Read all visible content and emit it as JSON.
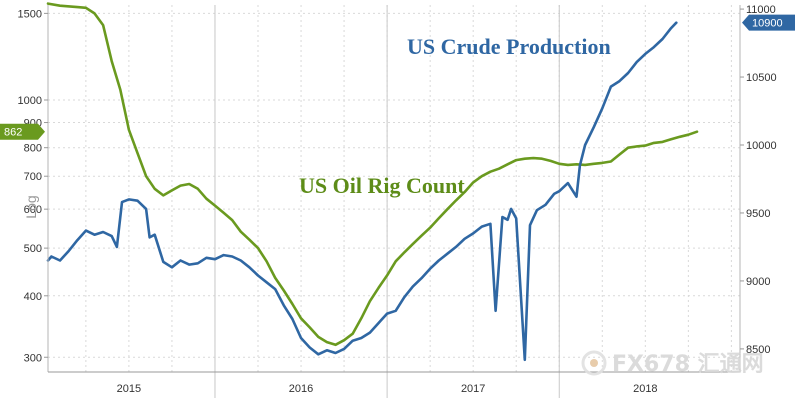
{
  "chart_data": {
    "type": "line",
    "title": "",
    "left_axis": {
      "label": "Log",
      "scale": "log",
      "range": [
        280,
        1560
      ],
      "ticks": [
        300,
        400,
        500,
        600,
        700,
        800,
        900,
        1000,
        1500
      ],
      "tick_labels": [
        "300",
        "400",
        "500",
        "600",
        "700",
        "800",
        "900",
        "1000",
        "1500"
      ]
    },
    "right_axis": {
      "label": "",
      "scale": "linear",
      "range": [
        8330,
        11030
      ],
      "ticks": [
        8500,
        9000,
        9500,
        10000,
        10500,
        11000
      ],
      "tick_labels": [
        "8500",
        "9000",
        "9500",
        "10000",
        "10500",
        "11000"
      ]
    },
    "x_axis": {
      "range": [
        2014.53,
        2018.55
      ],
      "tick_labels": [
        {
          "label": "2015",
          "x": 2015.0
        },
        {
          "label": "2016",
          "x": 2016.0
        },
        {
          "label": "2017",
          "x": 2017.0
        },
        {
          "label": "2018",
          "x": 2018.0
        }
      ],
      "year_dividers": [
        2015.5,
        2016.5,
        2017.5
      ]
    },
    "grid": true,
    "series": [
      {
        "name": "US Oil Rig Count",
        "axis": "left",
        "color": "#6a9a1f",
        "last_value_label": "862",
        "points": [
          [
            2014.53,
            1570
          ],
          [
            2014.6,
            1555
          ],
          [
            2014.7,
            1545
          ],
          [
            2014.75,
            1540
          ],
          [
            2014.8,
            1500
          ],
          [
            2014.85,
            1420
          ],
          [
            2014.9,
            1200
          ],
          [
            2014.95,
            1050
          ],
          [
            2015.0,
            870
          ],
          [
            2015.05,
            780
          ],
          [
            2015.1,
            700
          ],
          [
            2015.15,
            660
          ],
          [
            2015.2,
            640
          ],
          [
            2015.25,
            655
          ],
          [
            2015.3,
            670
          ],
          [
            2015.35,
            675
          ],
          [
            2015.4,
            660
          ],
          [
            2015.45,
            630
          ],
          [
            2015.5,
            610
          ],
          [
            2015.55,
            590
          ],
          [
            2015.6,
            570
          ],
          [
            2015.65,
            540
          ],
          [
            2015.7,
            520
          ],
          [
            2015.75,
            500
          ],
          [
            2015.8,
            470
          ],
          [
            2015.85,
            435
          ],
          [
            2015.9,
            410
          ],
          [
            2015.95,
            385
          ],
          [
            2016.0,
            360
          ],
          [
            2016.05,
            345
          ],
          [
            2016.1,
            330
          ],
          [
            2016.15,
            322
          ],
          [
            2016.2,
            318
          ],
          [
            2016.25,
            325
          ],
          [
            2016.3,
            335
          ],
          [
            2016.35,
            360
          ],
          [
            2016.4,
            390
          ],
          [
            2016.45,
            415
          ],
          [
            2016.5,
            440
          ],
          [
            2016.55,
            470
          ],
          [
            2016.6,
            490
          ],
          [
            2016.65,
            510
          ],
          [
            2016.7,
            530
          ],
          [
            2016.75,
            550
          ],
          [
            2016.8,
            575
          ],
          [
            2016.85,
            600
          ],
          [
            2016.9,
            625
          ],
          [
            2016.95,
            650
          ],
          [
            2017.0,
            680
          ],
          [
            2017.05,
            700
          ],
          [
            2017.1,
            715
          ],
          [
            2017.15,
            725
          ],
          [
            2017.2,
            740
          ],
          [
            2017.25,
            755
          ],
          [
            2017.3,
            760
          ],
          [
            2017.35,
            762
          ],
          [
            2017.4,
            760
          ],
          [
            2017.45,
            752
          ],
          [
            2017.5,
            742
          ],
          [
            2017.55,
            738
          ],
          [
            2017.6,
            740
          ],
          [
            2017.65,
            738
          ],
          [
            2017.7,
            742
          ],
          [
            2017.75,
            745
          ],
          [
            2017.8,
            750
          ],
          [
            2017.85,
            775
          ],
          [
            2017.9,
            800
          ],
          [
            2017.95,
            805
          ],
          [
            2018.0,
            808
          ],
          [
            2018.05,
            818
          ],
          [
            2018.1,
            822
          ],
          [
            2018.15,
            832
          ],
          [
            2018.2,
            842
          ],
          [
            2018.25,
            850
          ],
          [
            2018.3,
            862
          ]
        ]
      },
      {
        "name": "US Crude Production",
        "axis": "right",
        "color": "#2f67a3",
        "last_value_label": "10900",
        "points": [
          [
            2014.53,
            9150
          ],
          [
            2014.55,
            9180
          ],
          [
            2014.6,
            9150
          ],
          [
            2014.65,
            9220
          ],
          [
            2014.7,
            9300
          ],
          [
            2014.75,
            9370
          ],
          [
            2014.8,
            9340
          ],
          [
            2014.85,
            9360
          ],
          [
            2014.9,
            9330
          ],
          [
            2014.93,
            9250
          ],
          [
            2014.96,
            9580
          ],
          [
            2015.0,
            9600
          ],
          [
            2015.05,
            9590
          ],
          [
            2015.1,
            9530
          ],
          [
            2015.12,
            9320
          ],
          [
            2015.15,
            9340
          ],
          [
            2015.2,
            9140
          ],
          [
            2015.25,
            9100
          ],
          [
            2015.3,
            9150
          ],
          [
            2015.35,
            9120
          ],
          [
            2015.4,
            9130
          ],
          [
            2015.45,
            9170
          ],
          [
            2015.5,
            9160
          ],
          [
            2015.55,
            9190
          ],
          [
            2015.6,
            9180
          ],
          [
            2015.65,
            9150
          ],
          [
            2015.7,
            9100
          ],
          [
            2015.75,
            9040
          ],
          [
            2015.8,
            8990
          ],
          [
            2015.85,
            8940
          ],
          [
            2015.9,
            8820
          ],
          [
            2015.95,
            8720
          ],
          [
            2016.0,
            8580
          ],
          [
            2016.05,
            8510
          ],
          [
            2016.1,
            8460
          ],
          [
            2016.15,
            8490
          ],
          [
            2016.2,
            8470
          ],
          [
            2016.25,
            8500
          ],
          [
            2016.3,
            8560
          ],
          [
            2016.35,
            8580
          ],
          [
            2016.4,
            8620
          ],
          [
            2016.45,
            8690
          ],
          [
            2016.5,
            8760
          ],
          [
            2016.55,
            8780
          ],
          [
            2016.6,
            8880
          ],
          [
            2016.65,
            8960
          ],
          [
            2016.7,
            9020
          ],
          [
            2016.75,
            9090
          ],
          [
            2016.8,
            9150
          ],
          [
            2016.85,
            9200
          ],
          [
            2016.9,
            9250
          ],
          [
            2016.95,
            9310
          ],
          [
            2017.0,
            9350
          ],
          [
            2017.05,
            9400
          ],
          [
            2017.1,
            9420
          ],
          [
            2017.13,
            8780
          ],
          [
            2017.17,
            9470
          ],
          [
            2017.2,
            9450
          ],
          [
            2017.22,
            9530
          ],
          [
            2017.25,
            9460
          ],
          [
            2017.3,
            8420
          ],
          [
            2017.33,
            9410
          ],
          [
            2017.37,
            9520
          ],
          [
            2017.42,
            9560
          ],
          [
            2017.47,
            9640
          ],
          [
            2017.5,
            9660
          ],
          [
            2017.55,
            9720
          ],
          [
            2017.6,
            9620
          ],
          [
            2017.62,
            9850
          ],
          [
            2017.65,
            10000
          ],
          [
            2017.7,
            10130
          ],
          [
            2017.75,
            10270
          ],
          [
            2017.8,
            10430
          ],
          [
            2017.85,
            10470
          ],
          [
            2017.9,
            10530
          ],
          [
            2017.95,
            10610
          ],
          [
            2018.0,
            10670
          ],
          [
            2018.05,
            10720
          ],
          [
            2018.1,
            10780
          ],
          [
            2018.15,
            10860
          ],
          [
            2018.18,
            10900
          ]
        ]
      }
    ],
    "annotations": [
      {
        "text": "US Crude Production",
        "color": "#2f67a3"
      },
      {
        "text": "US Oil Rig Count",
        "color": "#5d8c18"
      }
    ]
  },
  "watermark": {
    "text": "FX678 汇通网"
  }
}
